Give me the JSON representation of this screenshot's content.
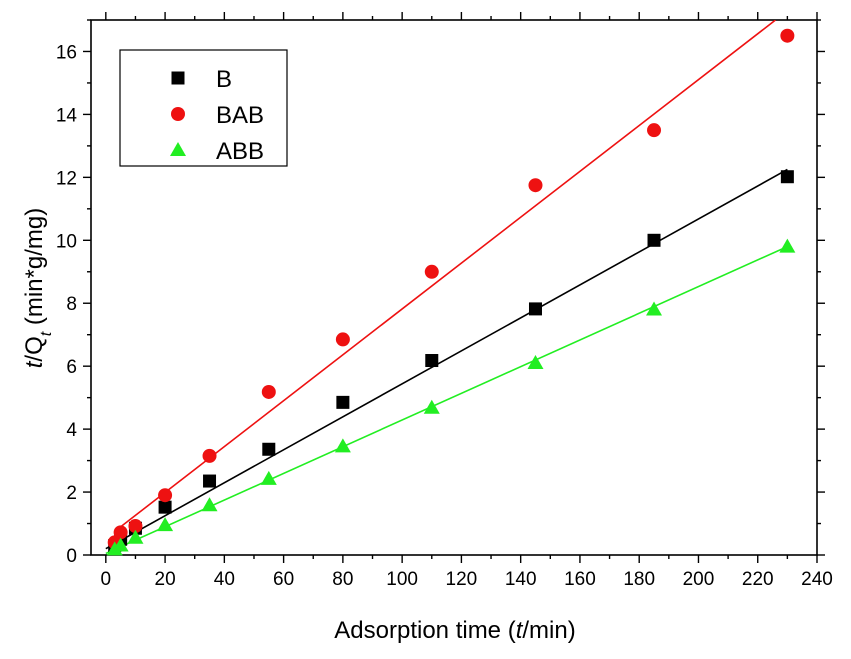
{
  "chart_data": {
    "type": "scatter",
    "xlabel_parts": [
      "Adsorption time (",
      "t",
      "/min)"
    ],
    "ylabel_parts": [
      "t",
      "/Q",
      "t",
      " (min*g/mg)"
    ],
    "xlim": [
      -5,
      240
    ],
    "ylim": [
      0,
      17
    ],
    "xticks": [
      0,
      20,
      40,
      60,
      80,
      100,
      120,
      140,
      160,
      180,
      200,
      220,
      240
    ],
    "yticks": [
      0,
      2,
      4,
      6,
      8,
      10,
      12,
      14,
      16
    ],
    "grid": false,
    "legend_position": "top-left",
    "series": [
      {
        "name": "B",
        "marker": "square",
        "color": "#000000",
        "x": [
          3,
          5,
          10,
          20,
          35,
          55,
          80,
          110,
          145,
          185,
          230
        ],
        "y": [
          0.3,
          0.5,
          0.85,
          1.52,
          2.35,
          3.36,
          4.85,
          6.18,
          7.82,
          10.0,
          12.02
        ],
        "fit": [
          [
            0,
            0.2
          ],
          [
            230,
            12.25
          ]
        ]
      },
      {
        "name": "BAB",
        "marker": "circle",
        "color": "#ee1111",
        "x": [
          3,
          5,
          10,
          20,
          35,
          55,
          80,
          110,
          145,
          185,
          230
        ],
        "y": [
          0.4,
          0.72,
          0.92,
          1.9,
          3.15,
          5.18,
          6.85,
          9.0,
          11.75,
          13.5,
          16.5
        ],
        "fit": [
          [
            3,
            0.75
          ],
          [
            226,
            17.0
          ]
        ]
      },
      {
        "name": "ABB",
        "marker": "triangle",
        "color": "#22ee22",
        "x": [
          3,
          5,
          10,
          20,
          35,
          55,
          80,
          110,
          145,
          185,
          230
        ],
        "y": [
          0.18,
          0.3,
          0.55,
          0.95,
          1.58,
          2.42,
          3.45,
          4.68,
          6.1,
          7.8,
          9.8
        ],
        "fit": [
          [
            0,
            0.05
          ],
          [
            230,
            9.8
          ]
        ]
      }
    ]
  }
}
